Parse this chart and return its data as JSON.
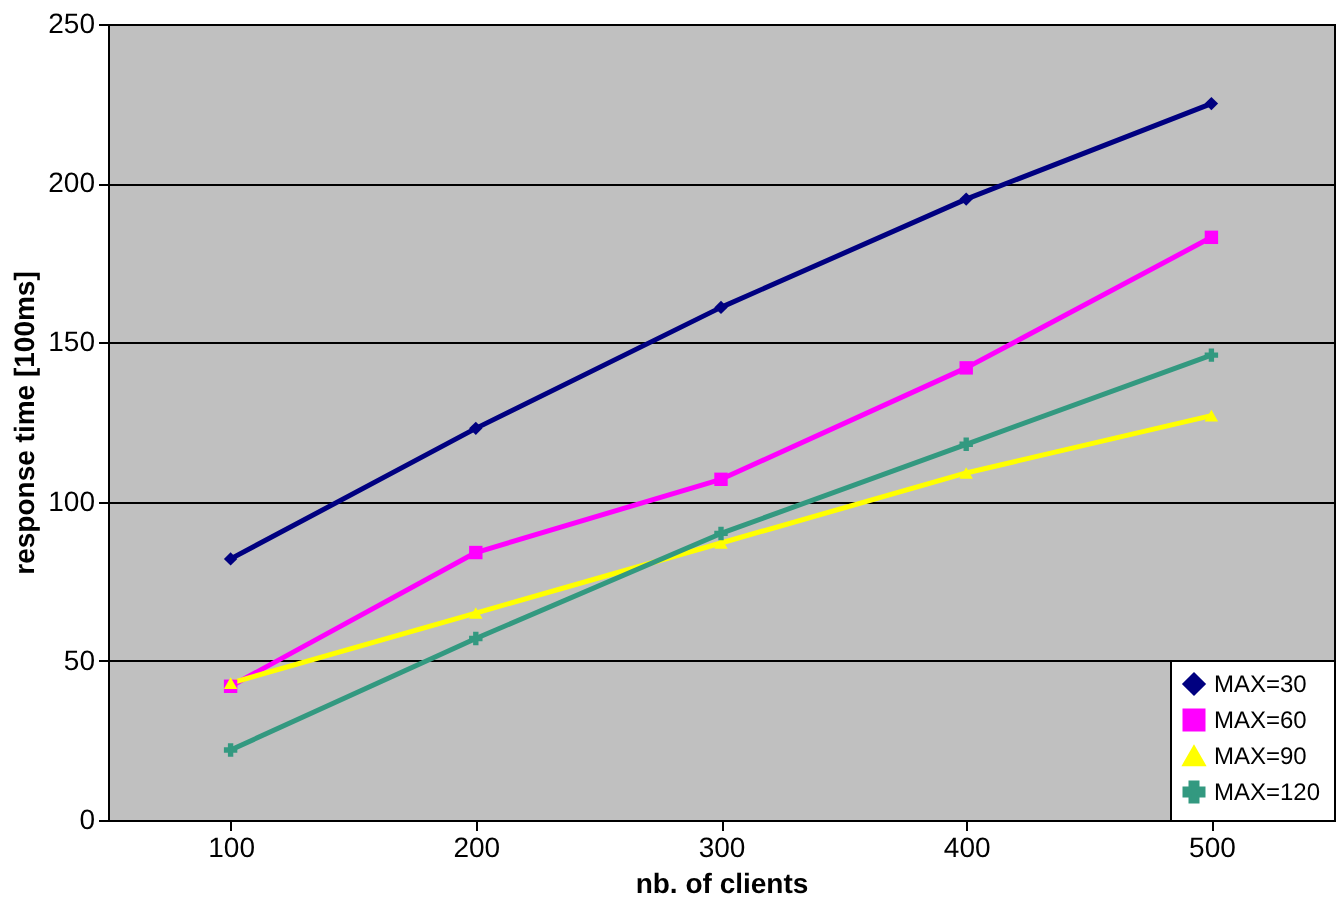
{
  "chart_data": {
    "type": "line",
    "xlabel": "nb. of clients",
    "ylabel": "response time [100ms]",
    "categories": [
      "100",
      "200",
      "300",
      "400",
      "500"
    ],
    "ylim": [
      0,
      250
    ],
    "yticks": [
      0,
      50,
      100,
      150,
      200,
      250
    ],
    "grid": "y",
    "legend": "bottom right",
    "series": [
      {
        "name": "MAX=30",
        "color": "#000080",
        "marker": "diamond",
        "values": [
          82,
          123,
          161,
          195,
          225
        ]
      },
      {
        "name": "MAX=60",
        "color": "#ff00ff",
        "marker": "square",
        "values": [
          42,
          84,
          107,
          142,
          183
        ]
      },
      {
        "name": "MAX=90",
        "color": "#ffff00",
        "marker": "triangle",
        "values": [
          43,
          65,
          87,
          109,
          127
        ]
      },
      {
        "name": "MAX=120",
        "color": "#339980",
        "marker": "cross",
        "values": [
          22,
          57,
          90,
          118,
          146
        ]
      }
    ]
  }
}
